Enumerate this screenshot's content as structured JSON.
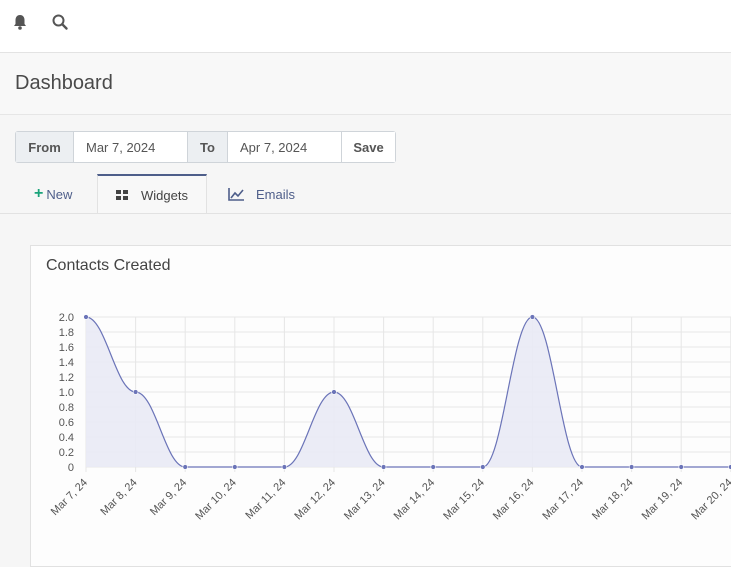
{
  "topbar": {
    "bell_icon": "bell-icon",
    "search_icon": "search-icon"
  },
  "header": {
    "title": "Dashboard"
  },
  "daterange": {
    "from_label": "From",
    "from_value": "Mar 7, 2024",
    "to_label": "To",
    "to_value": "Apr 7, 2024",
    "save_label": "Save"
  },
  "tabs": [
    {
      "label": "New",
      "icon": "plus-icon"
    },
    {
      "label": "Widgets",
      "icon": "grid-icon",
      "active": true
    },
    {
      "label": "Emails",
      "icon": "line-chart-icon"
    }
  ],
  "colors": {
    "series": "#6b74b8",
    "fill": "#e9eaf5",
    "accent": "#4e5e8a",
    "new": "#1aa37a"
  },
  "widget": {
    "title": "Contacts Created"
  },
  "chart_data": {
    "type": "area",
    "title": "Contacts Created",
    "ylim": [
      0,
      2
    ],
    "yticks": [
      "2.0",
      "1.8",
      "1.6",
      "1.4",
      "1.2",
      "1.0",
      "0.8",
      "0.6",
      "0.4",
      "0.2",
      "0"
    ],
    "x": [
      "Mar 7, 24",
      "Mar 8, 24",
      "Mar 9, 24",
      "Mar 10, 24",
      "Mar 11, 24",
      "Mar 12, 24",
      "Mar 13, 24",
      "Mar 14, 24",
      "Mar 15, 24",
      "Mar 16, 24",
      "Mar 17, 24",
      "Mar 18, 24",
      "Mar 19, 24",
      "Mar 20, 24"
    ],
    "series": [
      {
        "values": [
          2,
          1,
          0,
          0,
          0,
          1,
          0,
          0,
          0,
          2,
          0,
          0,
          0,
          0
        ]
      }
    ],
    "grid": true,
    "smooth": true
  }
}
